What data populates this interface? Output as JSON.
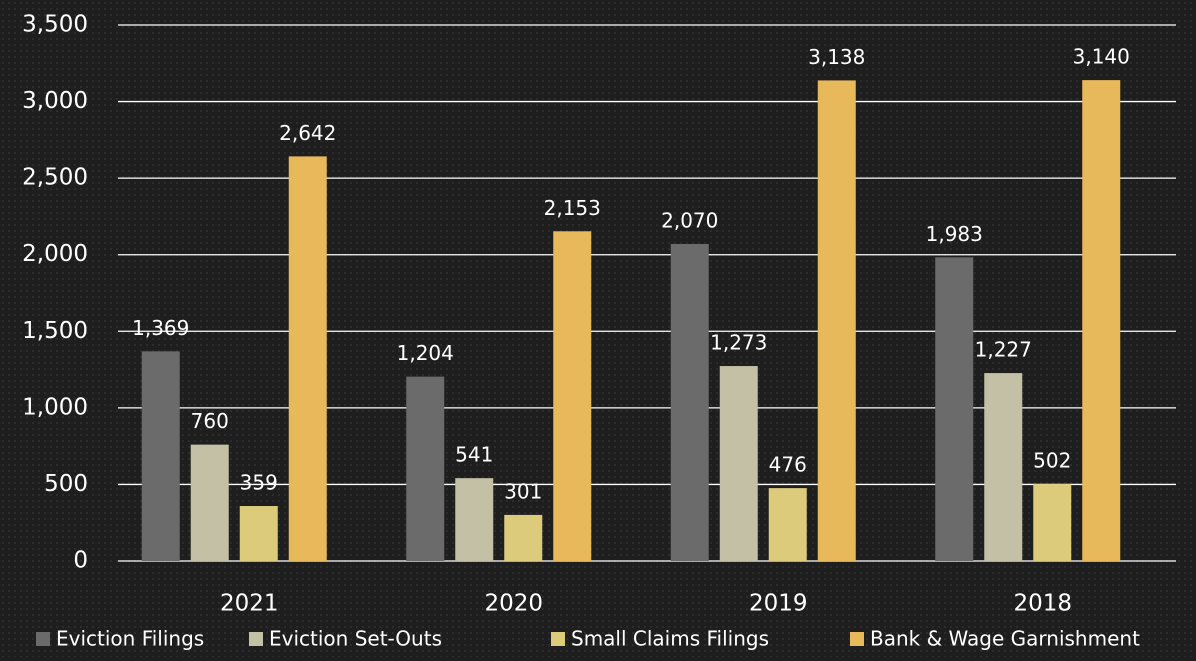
{
  "chart_data": {
    "type": "bar",
    "categories": [
      "2021",
      "2020",
      "2019",
      "2018"
    ],
    "series": [
      {
        "name": "Eviction Filings",
        "color": "#6b6b6b",
        "values": [
          1369,
          1204,
          2070,
          1983
        ],
        "value_labels": [
          "1,369",
          "1,204",
          "2,070",
          "1,983"
        ]
      },
      {
        "name": "Eviction Set-Outs",
        "color": "#c3c0a6",
        "values": [
          760,
          541,
          1273,
          1227
        ],
        "value_labels": [
          "760",
          "541",
          "1,273",
          "1,227"
        ]
      },
      {
        "name": "Small Claims Filings",
        "color": "#dccb7b",
        "values": [
          359,
          301,
          476,
          502
        ],
        "value_labels": [
          "359",
          "301",
          "476",
          "502"
        ]
      },
      {
        "name": "Bank & Wage Garnishment",
        "color": "#e8b95a",
        "values": [
          2642,
          2153,
          3138,
          3140
        ],
        "value_labels": [
          "2,642",
          "2,153",
          "3,138",
          "3,140"
        ]
      }
    ],
    "ylim": [
      0,
      3500
    ],
    "yticks": [
      0,
      500,
      {
        "value": 1000,
        "label": "1,000"
      },
      {
        "value": 1500,
        "label": "1,500"
      },
      {
        "value": 2000,
        "label": "2,000"
      },
      {
        "value": 2500,
        "label": "2,500"
      },
      {
        "value": 3000,
        "label": "3,000"
      },
      {
        "value": 3500,
        "label": "3,500"
      }
    ],
    "grid": true,
    "legend": "bottom"
  }
}
